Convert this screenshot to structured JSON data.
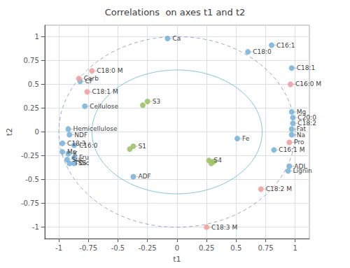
{
  "chart_data": {
    "type": "scatter",
    "title": "Correlations  on axes t1 and t2",
    "xlabel": "t1",
    "ylabel": "t2",
    "xlim": [
      -1.12,
      1.12
    ],
    "ylim": [
      -1.12,
      1.12
    ],
    "xticks": [
      -1,
      -0.75,
      -0.5,
      -0.25,
      0,
      0.25,
      0.5,
      0.75,
      1
    ],
    "yticks": [
      -1,
      -0.75,
      -0.5,
      -0.25,
      0,
      0.25,
      0.5,
      0.75,
      1
    ],
    "grid": true,
    "series": [
      {
        "color": "#7ab5d8",
        "marker": "circle",
        "x": [
          -0.08,
          0.6,
          0.8,
          0.97,
          -0.82,
          -0.78,
          -0.92,
          -0.91,
          -0.97,
          -0.87,
          -0.97,
          -0.92,
          -0.93,
          -0.87,
          -0.91,
          -0.87,
          -0.37,
          0.51,
          0.97,
          0.98,
          0.98,
          0.97,
          0.97,
          0.82,
          0.95,
          0.94
        ],
        "y": [
          0.98,
          0.84,
          0.91,
          0.67,
          0.53,
          0.27,
          0.03,
          -0.03,
          -0.12,
          -0.14,
          -0.21,
          -0.23,
          -0.29,
          -0.27,
          -0.33,
          -0.33,
          -0.47,
          -0.07,
          0.21,
          0.15,
          0.09,
          0.03,
          -0.03,
          -0.19,
          -0.36,
          -0.41
        ],
        "labels": [
          "Ca",
          "C18:0",
          "C16:1",
          "C18:1",
          "CF",
          "Cellulose",
          "Hemicellulose",
          "NDF",
          "C18:3",
          "C16:0",
          "Mn",
          "K",
          "Suc",
          "Fru",
          "TSS",
          "Glc",
          "ADF",
          "Fe",
          "Mg",
          "C20:0",
          "C18:2",
          "Fat",
          "Na",
          "C16:1 M",
          "ADL",
          "Lignin"
        ]
      },
      {
        "color": "#f0a0a0",
        "marker": "circle",
        "x": [
          -0.72,
          -0.76,
          0.96,
          0.95,
          0.71,
          0.25,
          -0.83
        ],
        "y": [
          0.64,
          0.42,
          0.5,
          -0.11,
          -0.6,
          -1.0,
          0.56
        ],
        "labels": [
          "C18:0 M",
          "C18:1 M",
          "C16:0 M",
          "Pro",
          "C18:2 M",
          "C18:3 M",
          "Carb"
        ]
      },
      {
        "color": "#9dc26a",
        "marker": "circle",
        "x": [
          -0.25,
          -0.29,
          -0.37,
          -0.4,
          0.27,
          0.29,
          0.31
        ],
        "y": [
          0.32,
          0.28,
          -0.15,
          -0.18,
          -0.3,
          -0.33,
          -0.31
        ],
        "labels": [
          "S3",
          null,
          "S1",
          null,
          "S4",
          null,
          null
        ]
      }
    ],
    "ellipses": [
      {
        "rx": 1,
        "ry": 1,
        "color": "#8888cc",
        "line_style": "dashed"
      },
      {
        "rx": 0.72,
        "ry": 0.65,
        "color": "#60b8c8",
        "line_style": "solid"
      }
    ]
  }
}
